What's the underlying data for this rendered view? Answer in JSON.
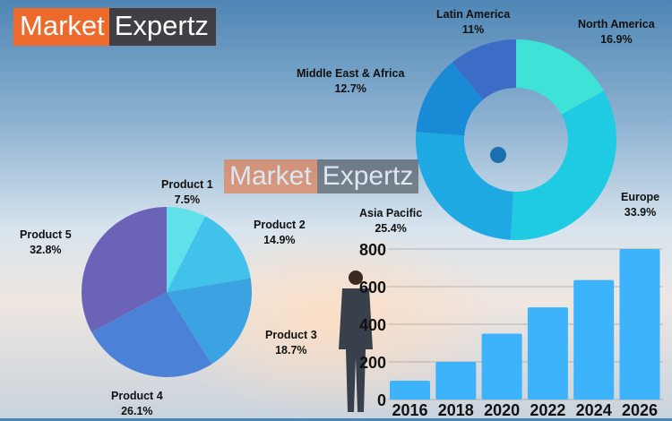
{
  "logo": {
    "part1": "Market",
    "part2": "Expertz",
    "colors": {
      "part1": "#ee6a2c",
      "part2": "#3f3f44"
    }
  },
  "chart_data": [
    {
      "type": "pie",
      "categories": [
        "Product 1",
        "Product 2",
        "Product 3",
        "Product 4",
        "Product 5"
      ],
      "values": [
        7.5,
        14.9,
        18.7,
        26.1,
        32.8
      ],
      "labels": [
        "7.5%",
        "14.9%",
        "18.7%",
        "26.1%",
        "32.8%"
      ],
      "colors": [
        "#5fe0ea",
        "#40c2ea",
        "#3ba3e2",
        "#4b82d8",
        "#6a63b8"
      ]
    },
    {
      "type": "pie",
      "subtype": "donut",
      "categories": [
        "North America",
        "Europe",
        "Asia Pacific",
        "Middle East & Africa",
        "Latin America"
      ],
      "values": [
        16.9,
        33.9,
        25.4,
        12.7,
        11
      ],
      "labels": [
        "16.9%",
        "33.9%",
        "25.4%",
        "12.7%",
        "11%"
      ],
      "colors": [
        "#3fe2d6",
        "#1fcbe2",
        "#1ea9e2",
        "#198bd6",
        "#3b6dc6"
      ]
    },
    {
      "type": "bar",
      "categories": [
        "2016",
        "2018",
        "2020",
        "2022",
        "2024",
        "2026"
      ],
      "values": [
        100,
        200,
        350,
        490,
        635,
        800
      ],
      "ylim": [
        0,
        800
      ],
      "yticks": [
        "0",
        "200",
        "400",
        "600",
        "800"
      ],
      "grid": true,
      "color": "#3db3fb"
    }
  ]
}
